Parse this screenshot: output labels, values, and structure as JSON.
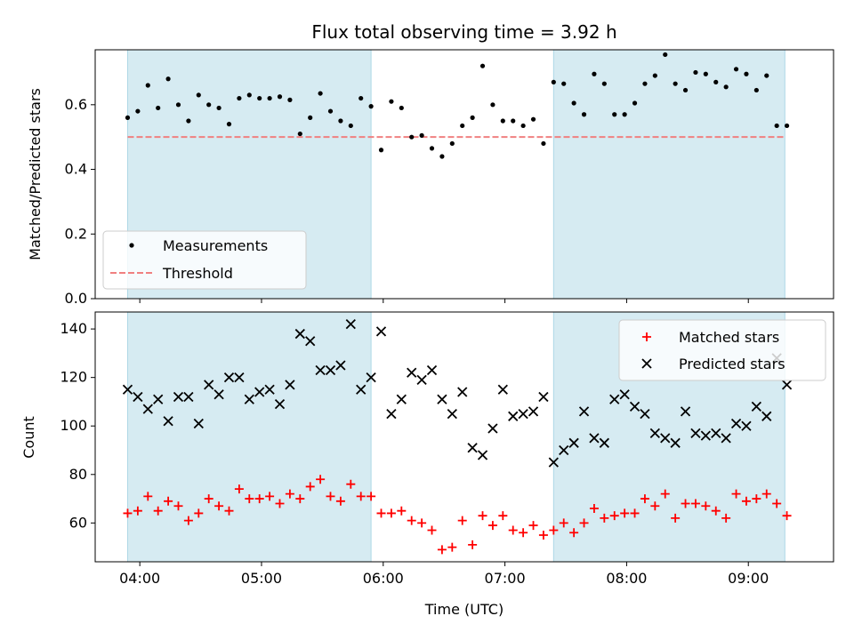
{
  "figure": {
    "title": "Flux total observing time = 3.92 h",
    "xlabel": "Time (UTC)"
  },
  "chart_data": [
    {
      "type": "scatter",
      "ylabel": "Matched/Predicted stars",
      "xlim": [
        "03:38",
        "09:42"
      ],
      "ylim": [
        0,
        0.77
      ],
      "yticks": [
        "0.0",
        "0.2",
        "0.4",
        "0.6"
      ],
      "shaded_intervals": [
        [
          "03:54",
          "05:54"
        ],
        [
          "07:24",
          "09:18"
        ]
      ],
      "grid": false,
      "legend_position": "lower-left",
      "threshold": {
        "name": "Threshold",
        "value": 0.5,
        "color": "#f08080",
        "start": "03:54",
        "end": "09:18"
      },
      "series": [
        {
          "name": "Measurements",
          "color": "#000000",
          "x": [
            "03:54",
            "03:59",
            "04:04",
            "04:09",
            "04:14",
            "04:19",
            "04:24",
            "04:29",
            "04:34",
            "04:39",
            "04:44",
            "04:49",
            "04:54",
            "04:59",
            "05:04",
            "05:09",
            "05:14",
            "05:19",
            "05:24",
            "05:29",
            "05:34",
            "05:39",
            "05:44",
            "05:49",
            "05:54",
            "05:59",
            "06:04",
            "06:09",
            "06:14",
            "06:19",
            "06:24",
            "06:29",
            "06:34",
            "06:39",
            "06:44",
            "06:49",
            "06:54",
            "06:59",
            "07:04",
            "07:09",
            "07:14",
            "07:19",
            "07:24",
            "07:29",
            "07:34",
            "07:39",
            "07:44",
            "07:49",
            "07:54",
            "07:59",
            "08:04",
            "08:09",
            "08:14",
            "08:19",
            "08:24",
            "08:29",
            "08:34",
            "08:39",
            "08:44",
            "08:49",
            "08:54",
            "08:59",
            "09:04",
            "09:09",
            "09:14",
            "09:19"
          ],
          "y": [
            0.56,
            0.58,
            0.66,
            0.59,
            0.68,
            0.6,
            0.55,
            0.63,
            0.6,
            0.59,
            0.54,
            0.62,
            0.63,
            0.62,
            0.62,
            0.625,
            0.615,
            0.51,
            0.56,
            0.635,
            0.58,
            0.55,
            0.535,
            0.62,
            0.595,
            0.46,
            0.61,
            0.59,
            0.5,
            0.505,
            0.465,
            0.44,
            0.48,
            0.535,
            0.56,
            0.72,
            0.6,
            0.55,
            0.55,
            0.535,
            0.555,
            0.48,
            0.67,
            0.665,
            0.605,
            0.57,
            0.695,
            0.665,
            0.57,
            0.57,
            0.605,
            0.665,
            0.69,
            0.755,
            0.665,
            0.645,
            0.7,
            0.695,
            0.67,
            0.655,
            0.71,
            0.695,
            0.645,
            0.69,
            0.535,
            0.535
          ]
        }
      ]
    },
    {
      "type": "scatter",
      "ylabel": "Count",
      "xlim": [
        "03:38",
        "09:42"
      ],
      "ylim": [
        44,
        147
      ],
      "yticks": [
        "60",
        "80",
        "100",
        "120",
        "140"
      ],
      "xticks": [
        "04:00",
        "05:00",
        "06:00",
        "07:00",
        "08:00",
        "09:00"
      ],
      "shaded_intervals": [
        [
          "03:54",
          "05:54"
        ],
        [
          "07:24",
          "09:18"
        ]
      ],
      "grid": false,
      "legend_position": "top-right",
      "series": [
        {
          "name": "Matched stars",
          "color": "#ff0000",
          "marker": "plus",
          "x": [
            "03:54",
            "03:59",
            "04:04",
            "04:09",
            "04:14",
            "04:19",
            "04:24",
            "04:29",
            "04:34",
            "04:39",
            "04:44",
            "04:49",
            "04:54",
            "04:59",
            "05:04",
            "05:09",
            "05:14",
            "05:19",
            "05:24",
            "05:29",
            "05:34",
            "05:39",
            "05:44",
            "05:49",
            "05:54",
            "05:59",
            "06:04",
            "06:09",
            "06:14",
            "06:19",
            "06:24",
            "06:29",
            "06:34",
            "06:39",
            "06:44",
            "06:49",
            "06:54",
            "06:59",
            "07:04",
            "07:09",
            "07:14",
            "07:19",
            "07:24",
            "07:29",
            "07:34",
            "07:39",
            "07:44",
            "07:49",
            "07:54",
            "07:59",
            "08:04",
            "08:09",
            "08:14",
            "08:19",
            "08:24",
            "08:29",
            "08:34",
            "08:39",
            "08:44",
            "08:49",
            "08:54",
            "08:59",
            "09:04",
            "09:09",
            "09:14",
            "09:19"
          ],
          "y": [
            64,
            65,
            71,
            65,
            69,
            67,
            61,
            64,
            70,
            67,
            65,
            74,
            70,
            70,
            71,
            68,
            72,
            70,
            75,
            78,
            71,
            69,
            76,
            71,
            71,
            64,
            64,
            65,
            61,
            60,
            57,
            49,
            50,
            61,
            51,
            63,
            59,
            63,
            57,
            56,
            59,
            55,
            57,
            60,
            56,
            60,
            66,
            62,
            63,
            64,
            64,
            70,
            67,
            72,
            62,
            68,
            68,
            67,
            65,
            62,
            72,
            69,
            70,
            72,
            68,
            63
          ]
        },
        {
          "name": "Predicted stars",
          "color": "#000000",
          "marker": "x",
          "x": [
            "03:54",
            "03:59",
            "04:04",
            "04:09",
            "04:14",
            "04:19",
            "04:24",
            "04:29",
            "04:34",
            "04:39",
            "04:44",
            "04:49",
            "04:54",
            "04:59",
            "05:04",
            "05:09",
            "05:14",
            "05:19",
            "05:24",
            "05:29",
            "05:34",
            "05:39",
            "05:44",
            "05:49",
            "05:54",
            "05:59",
            "06:04",
            "06:09",
            "06:14",
            "06:19",
            "06:24",
            "06:29",
            "06:34",
            "06:39",
            "06:44",
            "06:49",
            "06:54",
            "06:59",
            "07:04",
            "07:09",
            "07:14",
            "07:19",
            "07:24",
            "07:29",
            "07:34",
            "07:39",
            "07:44",
            "07:49",
            "07:54",
            "07:59",
            "08:04",
            "08:09",
            "08:14",
            "08:19",
            "08:24",
            "08:29",
            "08:34",
            "08:39",
            "08:44",
            "08:49",
            "08:54",
            "08:59",
            "09:04",
            "09:09",
            "09:14",
            "09:19"
          ],
          "y": [
            115,
            112,
            107,
            111,
            102,
            112,
            112,
            101,
            117,
            113,
            120,
            120,
            111,
            114,
            115,
            109,
            117,
            138,
            135,
            123,
            123,
            125,
            142,
            115,
            120,
            139,
            105,
            111,
            122,
            119,
            123,
            111,
            105,
            114,
            91,
            88,
            99,
            115,
            104,
            105,
            106,
            112,
            85,
            90,
            93,
            106,
            95,
            93,
            111,
            113,
            108,
            105,
            97,
            95,
            93,
            106,
            97,
            96,
            97,
            95,
            101,
            100,
            108,
            104,
            128,
            117
          ]
        }
      ]
    }
  ]
}
